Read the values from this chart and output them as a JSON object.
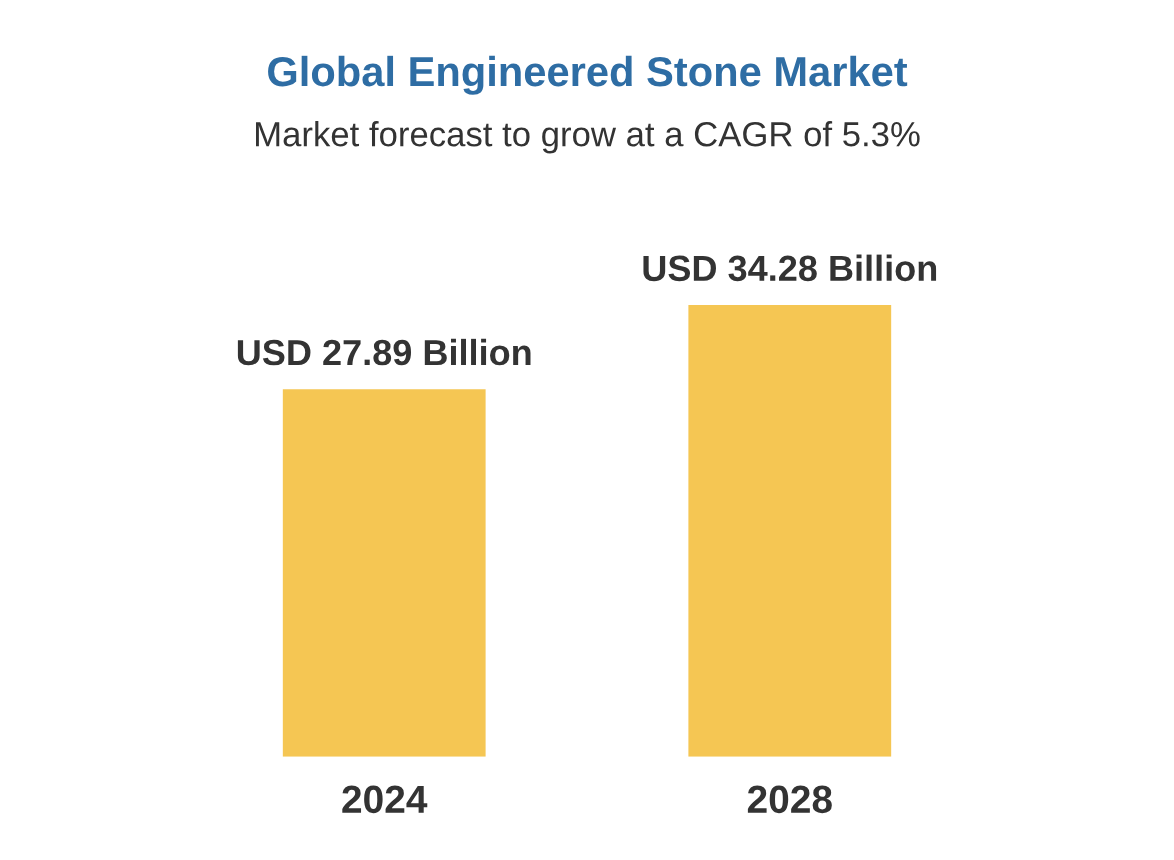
{
  "chart_data": {
    "type": "bar",
    "title": "Global Engineered Stone Market",
    "subtitle": "Market forecast to grow at a CAGR of 5.3%",
    "categories": [
      "2024",
      "2028"
    ],
    "values": [
      27.89,
      34.28
    ],
    "color": "#f5c653",
    "value_labels": [
      "USD 27.89 Billion",
      "USD 34.28 Billion"
    ],
    "grid": false,
    "legend": false
  }
}
